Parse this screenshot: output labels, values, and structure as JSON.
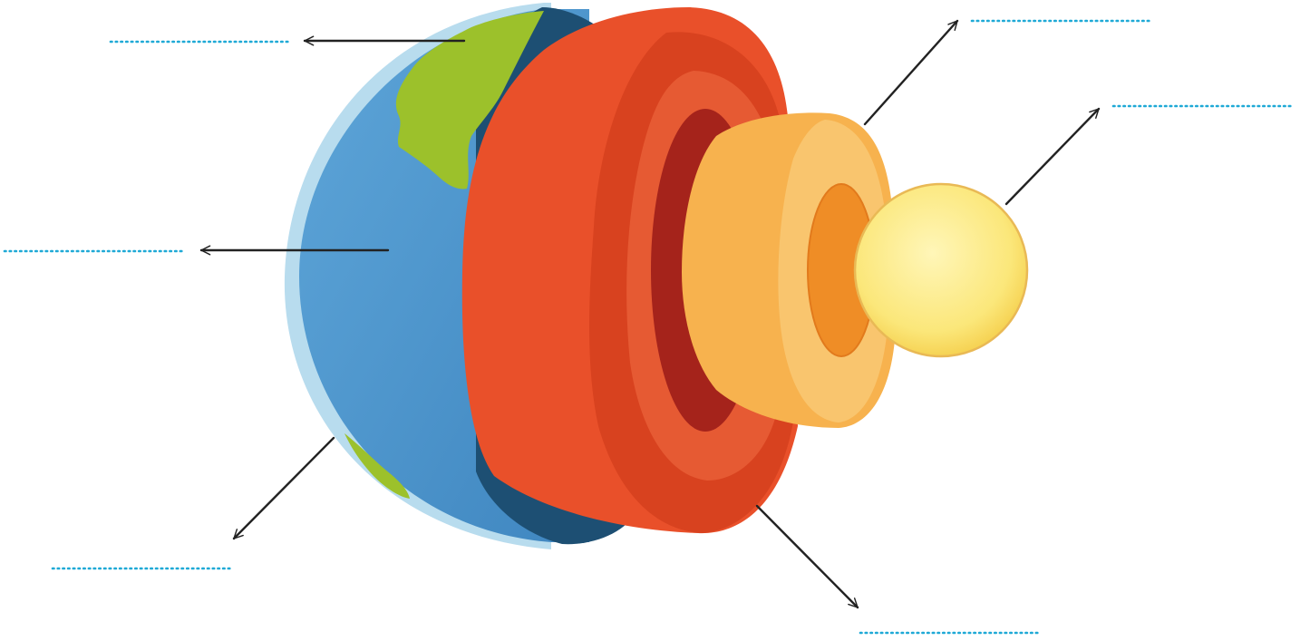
{
  "colors": {
    "blank_line": "#1fa9d6",
    "arrow": "#222222",
    "ocean": "#4f97cf",
    "land": "#9cc12b",
    "atmosphere": "#b8dcee",
    "crust_shadow": "#1d4f73",
    "upper_mantle": "#e9502a",
    "lower_mantle": "#d8421f",
    "mantle_inner": "#a5231b",
    "outer_core": "#f7b24e",
    "outer_core_ring": "#ef8d26",
    "inner_core": "#fbe77a"
  },
  "labels": {
    "blank_atmosphere": "",
    "blank_crust": "",
    "blank_continent": "",
    "blank_mantle": "",
    "blank_outer_core": "",
    "blank_inner_core": ""
  }
}
